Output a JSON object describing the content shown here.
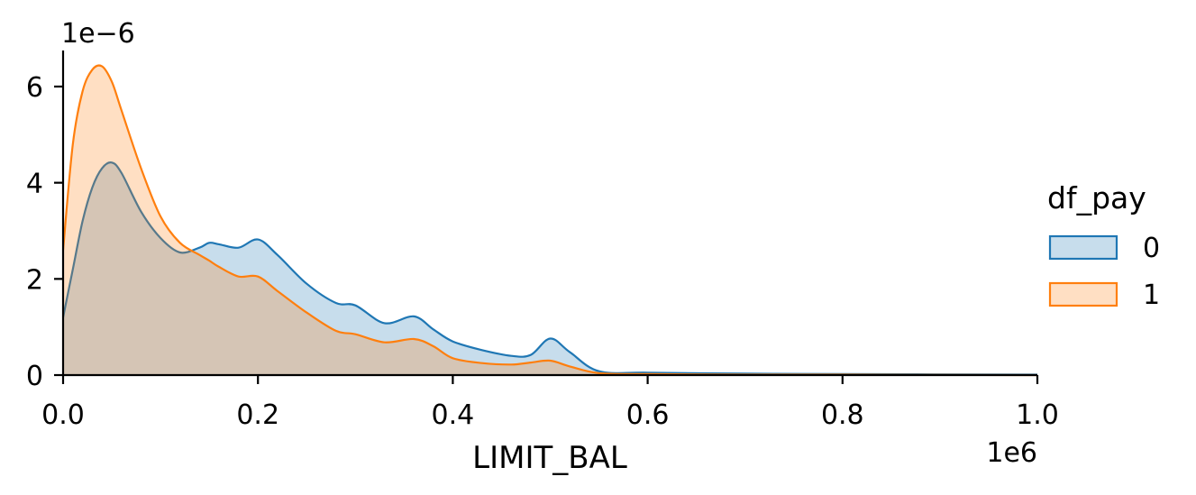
{
  "chart_data": {
    "type": "area",
    "subtype": "kde",
    "xlabel": "LIMIT_BAL",
    "ylabel": "",
    "x_offset_label": "1e6",
    "y_offset_label": "1e−6",
    "xlim": [
      0,
      1.0
    ],
    "ylim": [
      0,
      6.75
    ],
    "x_unit_scale": 1000000,
    "y_unit_scale": 1e-06,
    "x_ticks": [
      0.0,
      0.2,
      0.4,
      0.6,
      0.8,
      1.0
    ],
    "x_tick_labels": [
      "0.0",
      "0.2",
      "0.4",
      "0.6",
      "0.8",
      "1.0"
    ],
    "y_ticks": [
      0,
      2,
      4,
      6
    ],
    "y_tick_labels": [
      "0",
      "2",
      "4",
      "6"
    ],
    "grid": false,
    "legend": {
      "title": "df_pay",
      "placement": "right"
    },
    "x": [
      0,
      0.01,
      0.02,
      0.03,
      0.04,
      0.05,
      0.06,
      0.08,
      0.1,
      0.12,
      0.14,
      0.15,
      0.16,
      0.18,
      0.2,
      0.22,
      0.25,
      0.28,
      0.3,
      0.33,
      0.36,
      0.38,
      0.4,
      0.43,
      0.46,
      0.48,
      0.5,
      0.52,
      0.55,
      0.6,
      0.7,
      0.8,
      1.0
    ],
    "series": [
      {
        "name": "0",
        "color": "#1f77b4",
        "fill": "rgba(31,119,180,0.25)",
        "values": [
          1.2,
          2.2,
          3.2,
          3.9,
          4.3,
          4.42,
          4.2,
          3.4,
          2.85,
          2.55,
          2.65,
          2.75,
          2.72,
          2.65,
          2.82,
          2.5,
          1.9,
          1.5,
          1.45,
          1.08,
          1.22,
          0.95,
          0.7,
          0.52,
          0.4,
          0.42,
          0.76,
          0.48,
          0.08,
          0.05,
          0.03,
          0.02,
          0.01
        ]
      },
      {
        "name": "1",
        "color": "#ff7f0e",
        "fill": "rgba(255,127,14,0.25)",
        "values": [
          2.6,
          4.8,
          5.9,
          6.35,
          6.42,
          6.1,
          5.5,
          4.3,
          3.3,
          2.75,
          2.5,
          2.38,
          2.25,
          2.05,
          2.05,
          1.75,
          1.3,
          0.92,
          0.85,
          0.68,
          0.75,
          0.6,
          0.35,
          0.25,
          0.22,
          0.26,
          0.3,
          0.18,
          0.04,
          0.02,
          0.01,
          0.01,
          0.0
        ]
      }
    ]
  }
}
